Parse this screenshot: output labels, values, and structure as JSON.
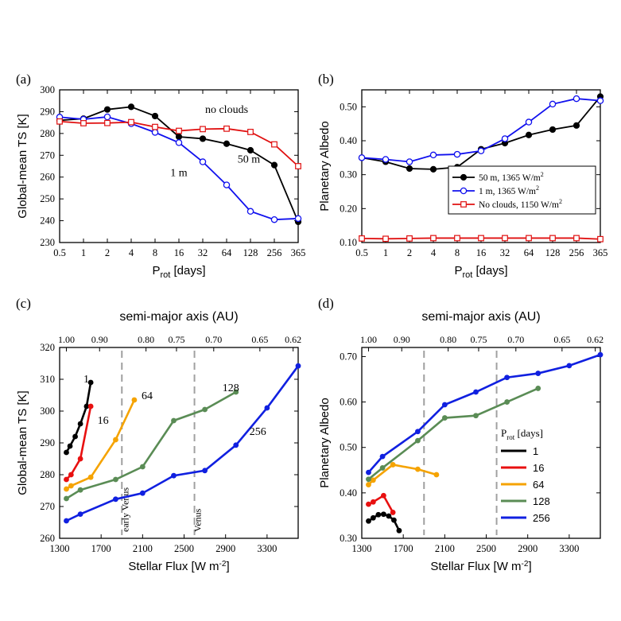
{
  "panels": [
    {
      "id": "a",
      "label": "(a)",
      "chart_data": {
        "type": "line",
        "ylabel": "Global-mean TS [K]",
        "xlabel_main": "P",
        "xlabel_sub": "rot",
        "xlabel_unit": " [days]",
        "x_ticks": [
          "0.5",
          "1",
          "2",
          "4",
          "8",
          "16",
          "32",
          "64",
          "128",
          "256",
          "365"
        ],
        "ylim": [
          230,
          300
        ],
        "y_ticks": [
          230,
          240,
          250,
          260,
          270,
          280,
          290,
          300
        ],
        "series": [
          {
            "name": "50 m",
            "color": "#000000",
            "marker": "filled-circle",
            "values": [
              286,
              286.8,
              291,
              292.2,
              288,
              278.5,
              277.6,
              275.3,
              272.3,
              265.5,
              239.5
            ]
          },
          {
            "name": "1 m",
            "color": "#1010ee",
            "marker": "open-circle",
            "values": [
              287.5,
              286.5,
              287.6,
              284.5,
              280.5,
              275.8,
              267,
              256.4,
              244.3,
              240.5,
              241
            ]
          },
          {
            "name": "no clouds",
            "color": "#e01010",
            "marker": "open-square",
            "values": [
              285.5,
              284.7,
              284.8,
              285.2,
              283,
              281.2,
              282,
              282.2,
              280.7,
              275,
              265
            ]
          }
        ],
        "annotations": [
          {
            "text": "no clouds",
            "series": 2,
            "near_index": 7,
            "dx": 0,
            "dy": -20
          },
          {
            "text": "50 m",
            "series": 0,
            "near_index": 7,
            "dx": 28,
            "dy": 24
          },
          {
            "text": "1 m",
            "series": 1,
            "near_index": 6,
            "dx": -30,
            "dy": 18
          }
        ]
      }
    },
    {
      "id": "b",
      "label": "(b)",
      "chart_data": {
        "type": "line",
        "ylabel": "Planetary Albedo",
        "xlabel_main": "P",
        "xlabel_sub": "rot",
        "xlabel_unit": " [days]",
        "x_ticks": [
          "0.5",
          "1",
          "2",
          "4",
          "8",
          "16",
          "32",
          "64",
          "128",
          "256",
          "365"
        ],
        "ylim": [
          0.1,
          0.55
        ],
        "y_ticks": [
          "0.10",
          "0.20",
          "0.30",
          "0.40",
          "0.50"
        ],
        "series": [
          {
            "name": "50 m, 1365 W/m",
            "sup": "2",
            "color": "#000000",
            "marker": "filled-circle",
            "values": [
              0.35,
              0.338,
              0.318,
              0.316,
              0.322,
              0.375,
              0.393,
              0.417,
              0.433,
              0.445,
              0.53
            ]
          },
          {
            "name": "1 m, 1365 W/m",
            "sup": "2",
            "color": "#1010ee",
            "marker": "open-circle",
            "values": [
              0.35,
              0.345,
              0.338,
              0.358,
              0.36,
              0.37,
              0.406,
              0.455,
              0.508,
              0.524,
              0.518
            ]
          },
          {
            "name": "No clouds, 1150 W/m",
            "sup": "2",
            "color": "#e01010",
            "marker": "open-square",
            "values": [
              0.112,
              0.111,
              0.112,
              0.113,
              0.113,
              0.113,
              0.113,
              0.113,
              0.113,
              0.113,
              0.11
            ]
          }
        ],
        "legend_position": "bottom-right"
      }
    },
    {
      "id": "c",
      "label": "(c)",
      "chart_data": {
        "type": "line",
        "ylabel": "Global-mean TS [K]",
        "xlabel": "Stellar Flux [W m",
        "xlabel_sup": "-2",
        "xlabel_close": "]",
        "top_label": "semi-major axis (AU)",
        "top_ticks": [
          "1.00",
          "0.90",
          "0.80",
          "0.75",
          "0.70",
          "0.65",
          "0.62"
        ],
        "xlim": [
          1300,
          3600
        ],
        "x_ticks": [
          1300,
          1700,
          2100,
          2500,
          2900,
          3300
        ],
        "ylim": [
          260,
          320
        ],
        "y_ticks": [
          260,
          270,
          280,
          290,
          300,
          310,
          320
        ],
        "vlines": [
          {
            "x": 1900,
            "text": "early Venus"
          },
          {
            "x": 2600,
            "text": "Venus"
          }
        ],
        "series": [
          {
            "name": "1",
            "color": "#000000",
            "x": [
              1365,
              1400,
              1450,
              1500,
              1560,
              1600
            ],
            "y": [
              287,
              289,
              292,
              296,
              301.5,
              309
            ]
          },
          {
            "name": "16",
            "color": "#e81010",
            "x": [
              1365,
              1410,
              1500,
              1600
            ],
            "y": [
              278.5,
              280,
              285,
              301.5
            ]
          },
          {
            "name": "64",
            "color": "#f5a300",
            "x": [
              1365,
              1410,
              1600,
              1840,
              2020
            ],
            "y": [
              275.5,
              276.5,
              279.2,
              291,
              303.5
            ]
          },
          {
            "name": "128",
            "color": "#5a8c55",
            "x": [
              1365,
              1500,
              1840,
              2100,
              2400,
              2700,
              3000
            ],
            "y": [
              272.5,
              275.2,
              278.5,
              282.5,
              297,
              300.5,
              306
            ]
          },
          {
            "name": "256",
            "color": "#1020e0",
            "x": [
              1365,
              1500,
              1840,
              2100,
              2400,
              2700,
              3000,
              3300,
              3600
            ],
            "y": [
              265.5,
              267.6,
              272.3,
              274.2,
              279.7,
              281.3,
              289.3,
              301,
              314.2
            ]
          }
        ],
        "annotations": [
          {
            "text": "1",
            "x": 1530,
            "y": 309
          },
          {
            "text": "16",
            "x": 1665,
            "y": 296
          },
          {
            "text": "64",
            "x": 2090,
            "y": 303.7
          },
          {
            "text": "128",
            "x": 2870,
            "y": 306.3
          },
          {
            "text": "256",
            "x": 3130,
            "y": 292.5
          }
        ]
      }
    },
    {
      "id": "d",
      "label": "(d)",
      "chart_data": {
        "type": "line",
        "ylabel": "Planetary Albedo",
        "xlabel": "Stellar Flux [W m",
        "xlabel_sup": "-2",
        "xlabel_close": "]",
        "top_label": "semi-major axis (AU)",
        "top_ticks": [
          "1.00",
          "0.90",
          "0.80",
          "0.75",
          "0.70",
          "0.65",
          "0.62"
        ],
        "xlim": [
          1300,
          3600
        ],
        "x_ticks": [
          1300,
          1700,
          2100,
          2500,
          2900,
          3300
        ],
        "ylim": [
          0.3,
          0.72
        ],
        "y_ticks": [
          "0.30",
          "0.40",
          "0.50",
          "0.60",
          "0.70"
        ],
        "vlines": [
          {
            "x": 1900
          },
          {
            "x": 2600
          }
        ],
        "series": [
          {
            "name": "1",
            "color": "#000000",
            "x": [
              1365,
              1410,
              1460,
              1510,
              1560,
              1610,
              1660
            ],
            "y": [
              0.338,
              0.345,
              0.352,
              0.353,
              0.349,
              0.34,
              0.317
            ]
          },
          {
            "name": "16",
            "color": "#e81010",
            "x": [
              1365,
              1410,
              1510,
              1600
            ],
            "y": [
              0.375,
              0.38,
              0.394,
              0.357
            ]
          },
          {
            "name": "64",
            "color": "#f5a300",
            "x": [
              1365,
              1410,
              1600,
              1840,
              2020
            ],
            "y": [
              0.418,
              0.428,
              0.462,
              0.452,
              0.44
            ]
          },
          {
            "name": "128",
            "color": "#5a8c55",
            "x": [
              1365,
              1500,
              1840,
              2100,
              2400,
              2700,
              3000
            ],
            "y": [
              0.43,
              0.455,
              0.515,
              0.565,
              0.57,
              0.6,
              0.63
            ]
          },
          {
            "name": "256",
            "color": "#1020e0",
            "x": [
              1365,
              1500,
              1840,
              2100,
              2400,
              2700,
              3000,
              3300,
              3600
            ],
            "y": [
              0.445,
              0.48,
              0.535,
              0.594,
              0.622,
              0.654,
              0.663,
              0.68,
              0.704
            ]
          }
        ],
        "legend_title": "P",
        "legend_title_sub": "rot",
        "legend_title_unit": " [days]",
        "legend_position": "bottom-right"
      }
    }
  ]
}
